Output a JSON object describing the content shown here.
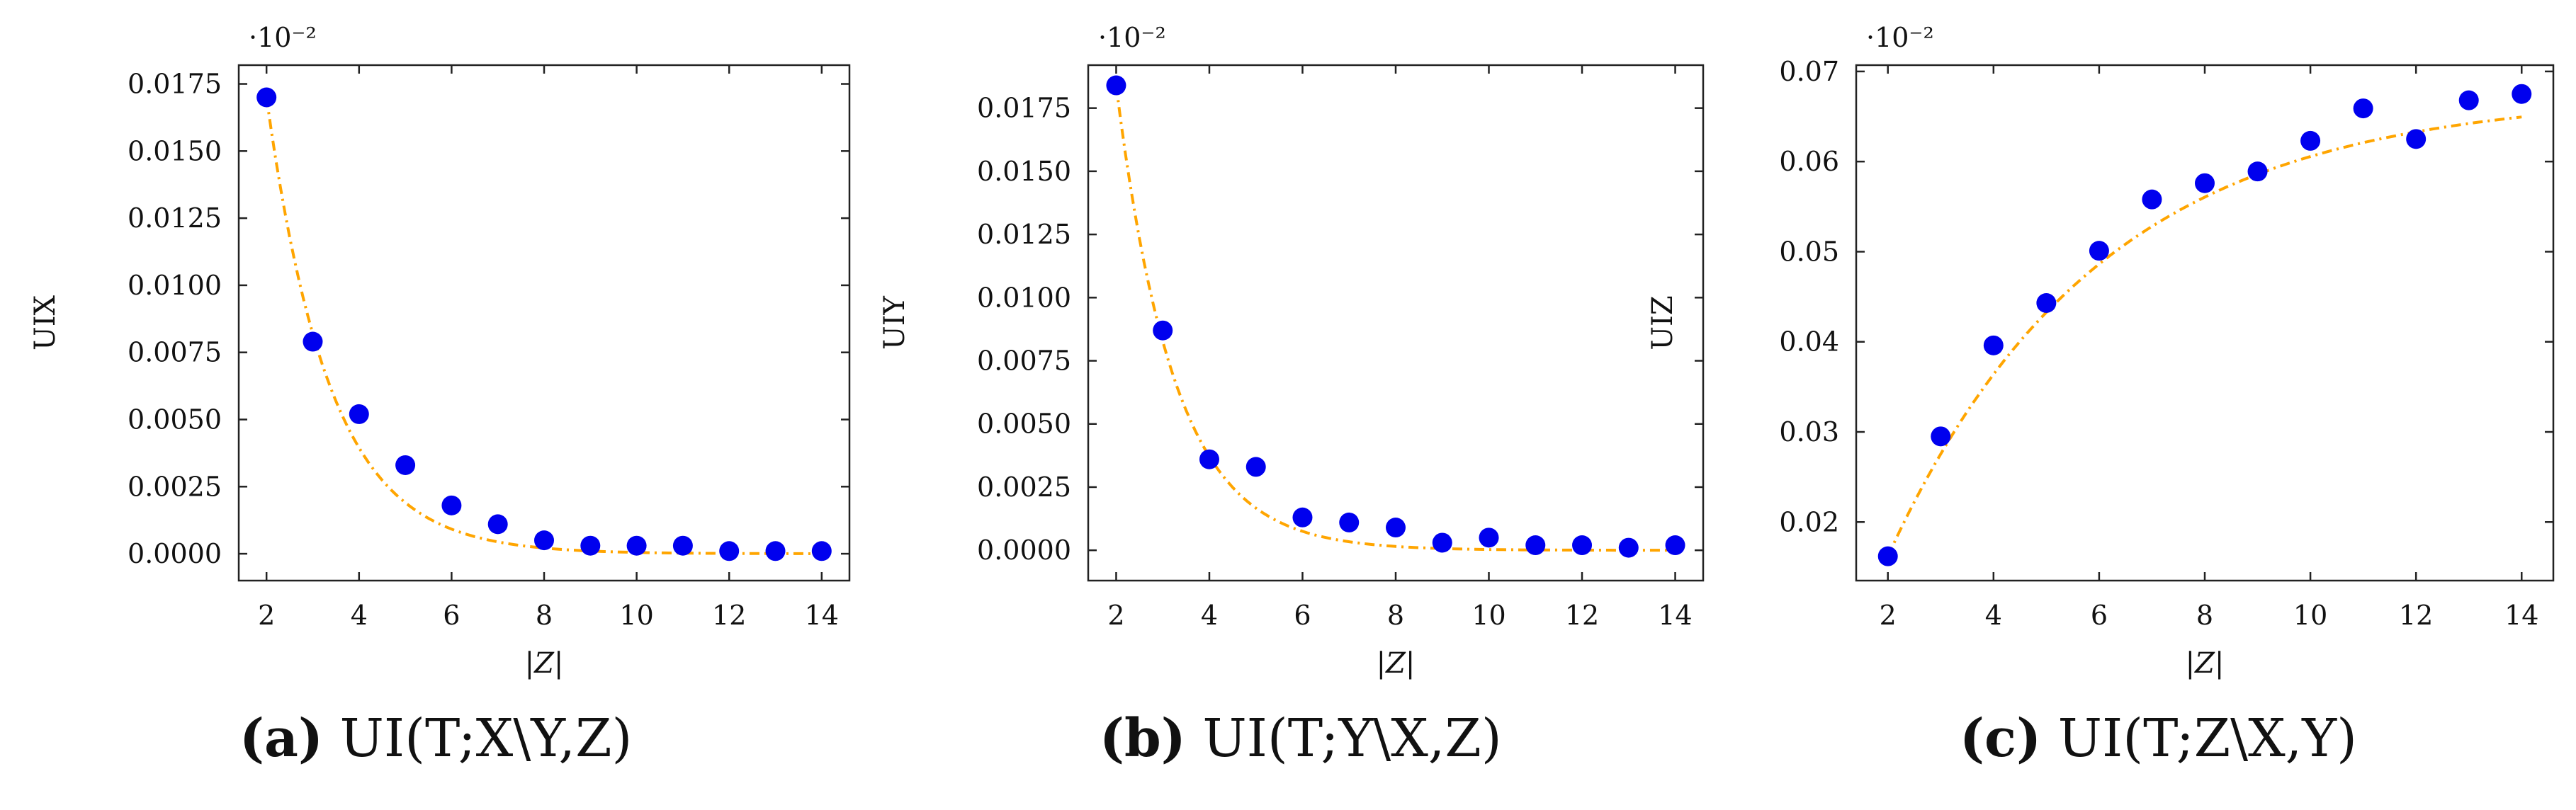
{
  "colors": {
    "points": "#0000ee",
    "fit": "#ffa500",
    "axis": "#222222",
    "text": "#111111"
  },
  "charts": [
    {
      "chart_data": {
        "type": "scatter",
        "x": [
          2,
          3,
          4,
          5,
          6,
          7,
          8,
          9,
          10,
          11,
          12,
          13,
          14
        ],
        "y": [
          0.017,
          0.0079,
          0.0052,
          0.0033,
          0.0018,
          0.0011,
          0.0005,
          0.0003,
          0.0003,
          0.0003,
          0.0001,
          0.0001,
          0.0001
        ],
        "fit": {
          "style": "dash-dot",
          "a": 0.017,
          "b": 0.0,
          "k": 0.73
        },
        "xlabel": "|Z|",
        "ylabel": "UIX",
        "multiplier": "·10⁻²",
        "xticks": [
          2,
          4,
          6,
          8,
          10,
          12,
          14
        ],
        "yticks": [
          "0.0000",
          "0.0025",
          "0.0050",
          "0.0075",
          "0.0100",
          "0.0125",
          "0.0150",
          "0.0175"
        ],
        "xlim": [
          1.4,
          14.6
        ],
        "ylim": [
          -0.001,
          0.0182
        ],
        "grid": false
      },
      "caption": {
        "tag": "(a)",
        "text": "UI(T;X\\Y,Z)"
      }
    },
    {
      "chart_data": {
        "type": "scatter",
        "x": [
          2,
          3,
          4,
          5,
          6,
          7,
          8,
          9,
          10,
          11,
          12,
          13,
          14
        ],
        "y": [
          0.0184,
          0.0087,
          0.0036,
          0.0033,
          0.0013,
          0.0011,
          0.0009,
          0.0003,
          0.0005,
          0.0002,
          0.0002,
          0.0001,
          0.0002
        ],
        "fit": {
          "style": "dash-dot",
          "a": 0.0184,
          "b": 0.0,
          "k": 0.8
        },
        "xlabel": "|Z|",
        "ylabel": "UIY",
        "multiplier": "·10⁻²",
        "xticks": [
          2,
          4,
          6,
          8,
          10,
          12,
          14
        ],
        "yticks": [
          "0.0000",
          "0.0025",
          "0.0050",
          "0.0075",
          "0.0100",
          "0.0125",
          "0.0150",
          "0.0175"
        ],
        "xlim": [
          1.4,
          14.6
        ],
        "ylim": [
          -0.0012,
          0.0192
        ],
        "grid": false
      },
      "caption": {
        "tag": "(b)",
        "text": "UI(T;Y\\X,Z)"
      }
    },
    {
      "chart_data": {
        "type": "scatter",
        "x": [
          2,
          3,
          4,
          5,
          6,
          7,
          8,
          9,
          10,
          11,
          12,
          13,
          14
        ],
        "y": [
          0.0162,
          0.0295,
          0.0396,
          0.0443,
          0.0501,
          0.0558,
          0.0576,
          0.0589,
          0.0623,
          0.0659,
          0.0625,
          0.0668,
          0.0675
        ],
        "fit": {
          "style": "dash-dot",
          "a": 0.0675,
          "b": -0.0513,
          "k": 0.25
        },
        "xlabel": "|Z|",
        "ylabel": "UIZ",
        "multiplier": "·10⁻²",
        "xticks": [
          2,
          4,
          6,
          8,
          10,
          12,
          14
        ],
        "yticks": [
          "0.02",
          "0.03",
          "0.04",
          "0.05",
          "0.06",
          "0.07"
        ],
        "xlim": [
          1.4,
          14.6
        ],
        "ylim": [
          0.0135,
          0.0707
        ],
        "grid": false
      },
      "caption": {
        "tag": "(c)",
        "text": "UI(T;Z\\X,Y)"
      }
    }
  ]
}
